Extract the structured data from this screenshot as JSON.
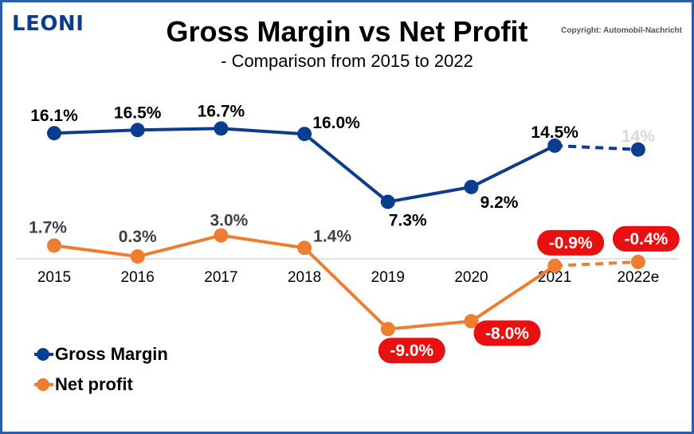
{
  "logo": "LEONI",
  "copyright": "Copyright: Automobil-Nachricht",
  "colors": {
    "gross": "#0a3d8f",
    "net": "#ed7d31",
    "badge": "#e81010",
    "faded": "#d8d8d8",
    "frame": "#2a5fa8"
  },
  "chart_data": {
    "type": "line",
    "title": "Gross Margin vs Net Profit",
    "subtitle": "- Comparison from 2015 to 2022",
    "categories": [
      "2015",
      "2016",
      "2017",
      "2018",
      "2019",
      "2020",
      "2021",
      "2022e"
    ],
    "unit": "%",
    "series": [
      {
        "name": "Gross Margin",
        "values": [
          16.1,
          16.5,
          16.7,
          16.0,
          7.3,
          9.2,
          14.5,
          14
        ],
        "labels": [
          "16.1%",
          "16.5%",
          "16.7%",
          "16.0%",
          "7.3%",
          "9.2%",
          "14.5%",
          "14%"
        ],
        "estimate_from_index": 6
      },
      {
        "name": "Net profit",
        "values": [
          1.7,
          0.3,
          3.0,
          1.4,
          -9.0,
          -8.0,
          -0.9,
          -0.4
        ],
        "labels": [
          "1.7%",
          "0.3%",
          "3.0%",
          "1.4%",
          "-9.0%",
          "-8.0%",
          "-0.9%",
          "-0.4%"
        ],
        "estimate_from_index": 6
      }
    ],
    "legend_position": "bottom-left",
    "grid": false
  }
}
